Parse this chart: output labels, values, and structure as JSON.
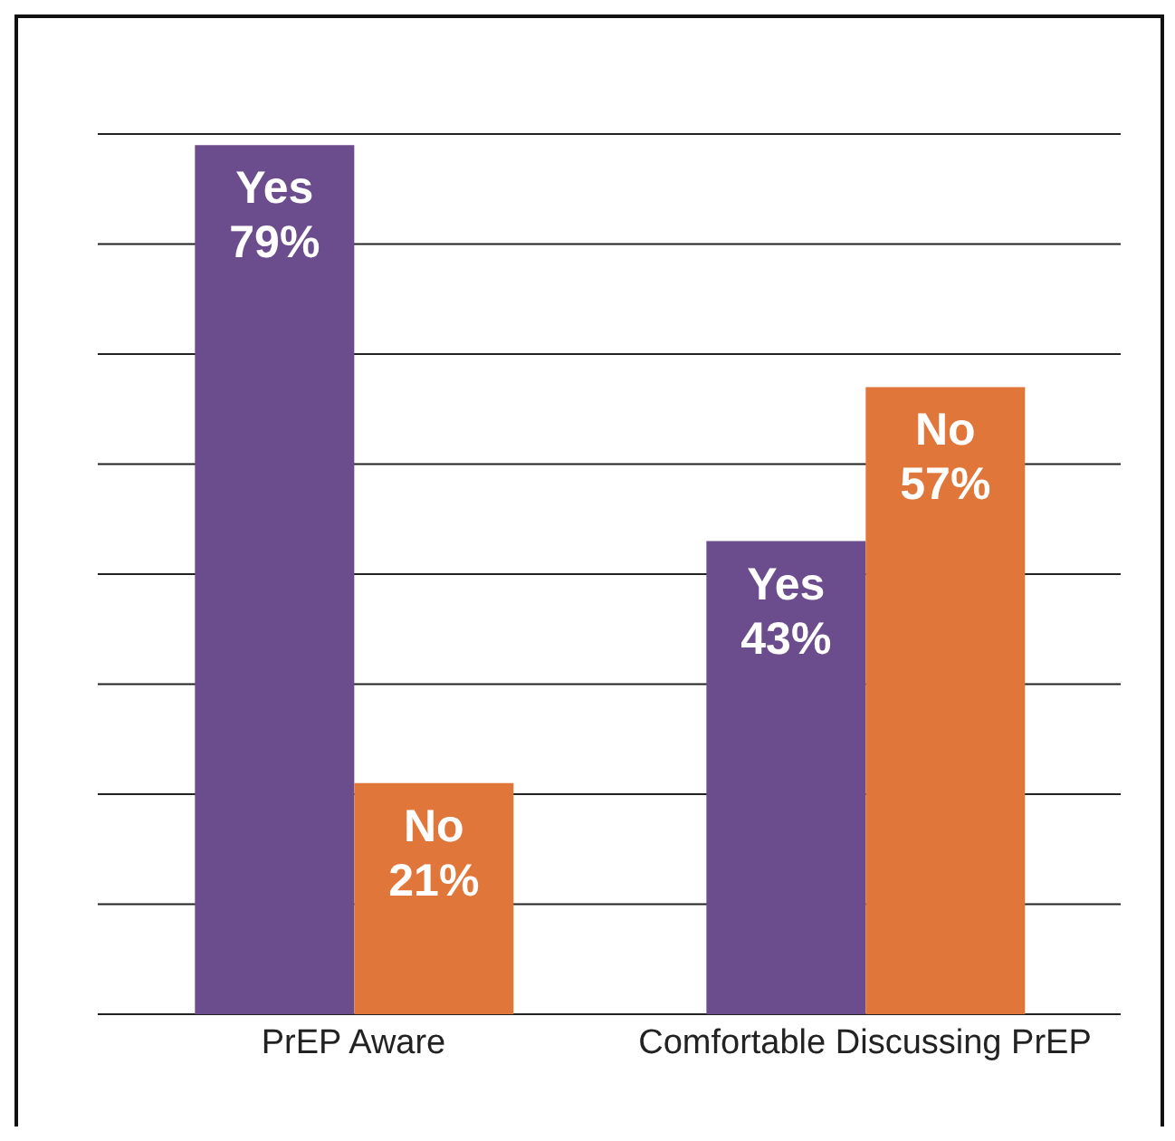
{
  "chart_data": {
    "type": "bar",
    "categories": [
      "PrEP Aware",
      "Comfortable Discussing PrEP"
    ],
    "series": [
      {
        "name": "Yes",
        "color": "#6b4c8c",
        "values": [
          79,
          43
        ],
        "value_labels": [
          "79%",
          "43%"
        ]
      },
      {
        "name": "No",
        "color": "#e0763a",
        "values": [
          21,
          57
        ],
        "value_labels": [
          "21%",
          "57%"
        ]
      }
    ],
    "ylim": [
      0,
      80
    ],
    "yticks": [
      0,
      {
        "value": 10,
        "label": null
      },
      {
        "value": 20,
        "label": null
      },
      {
        "value": 30,
        "label": null
      },
      {
        "value": 40,
        "label": null
      },
      {
        "value": 50,
        "label": null
      },
      {
        "value": 60,
        "label": null
      },
      {
        "value": 70,
        "label": null
      },
      {
        "value": 80,
        "label": null
      }
    ],
    "grid": "y",
    "tick_labels": "x",
    "legend": false
  }
}
